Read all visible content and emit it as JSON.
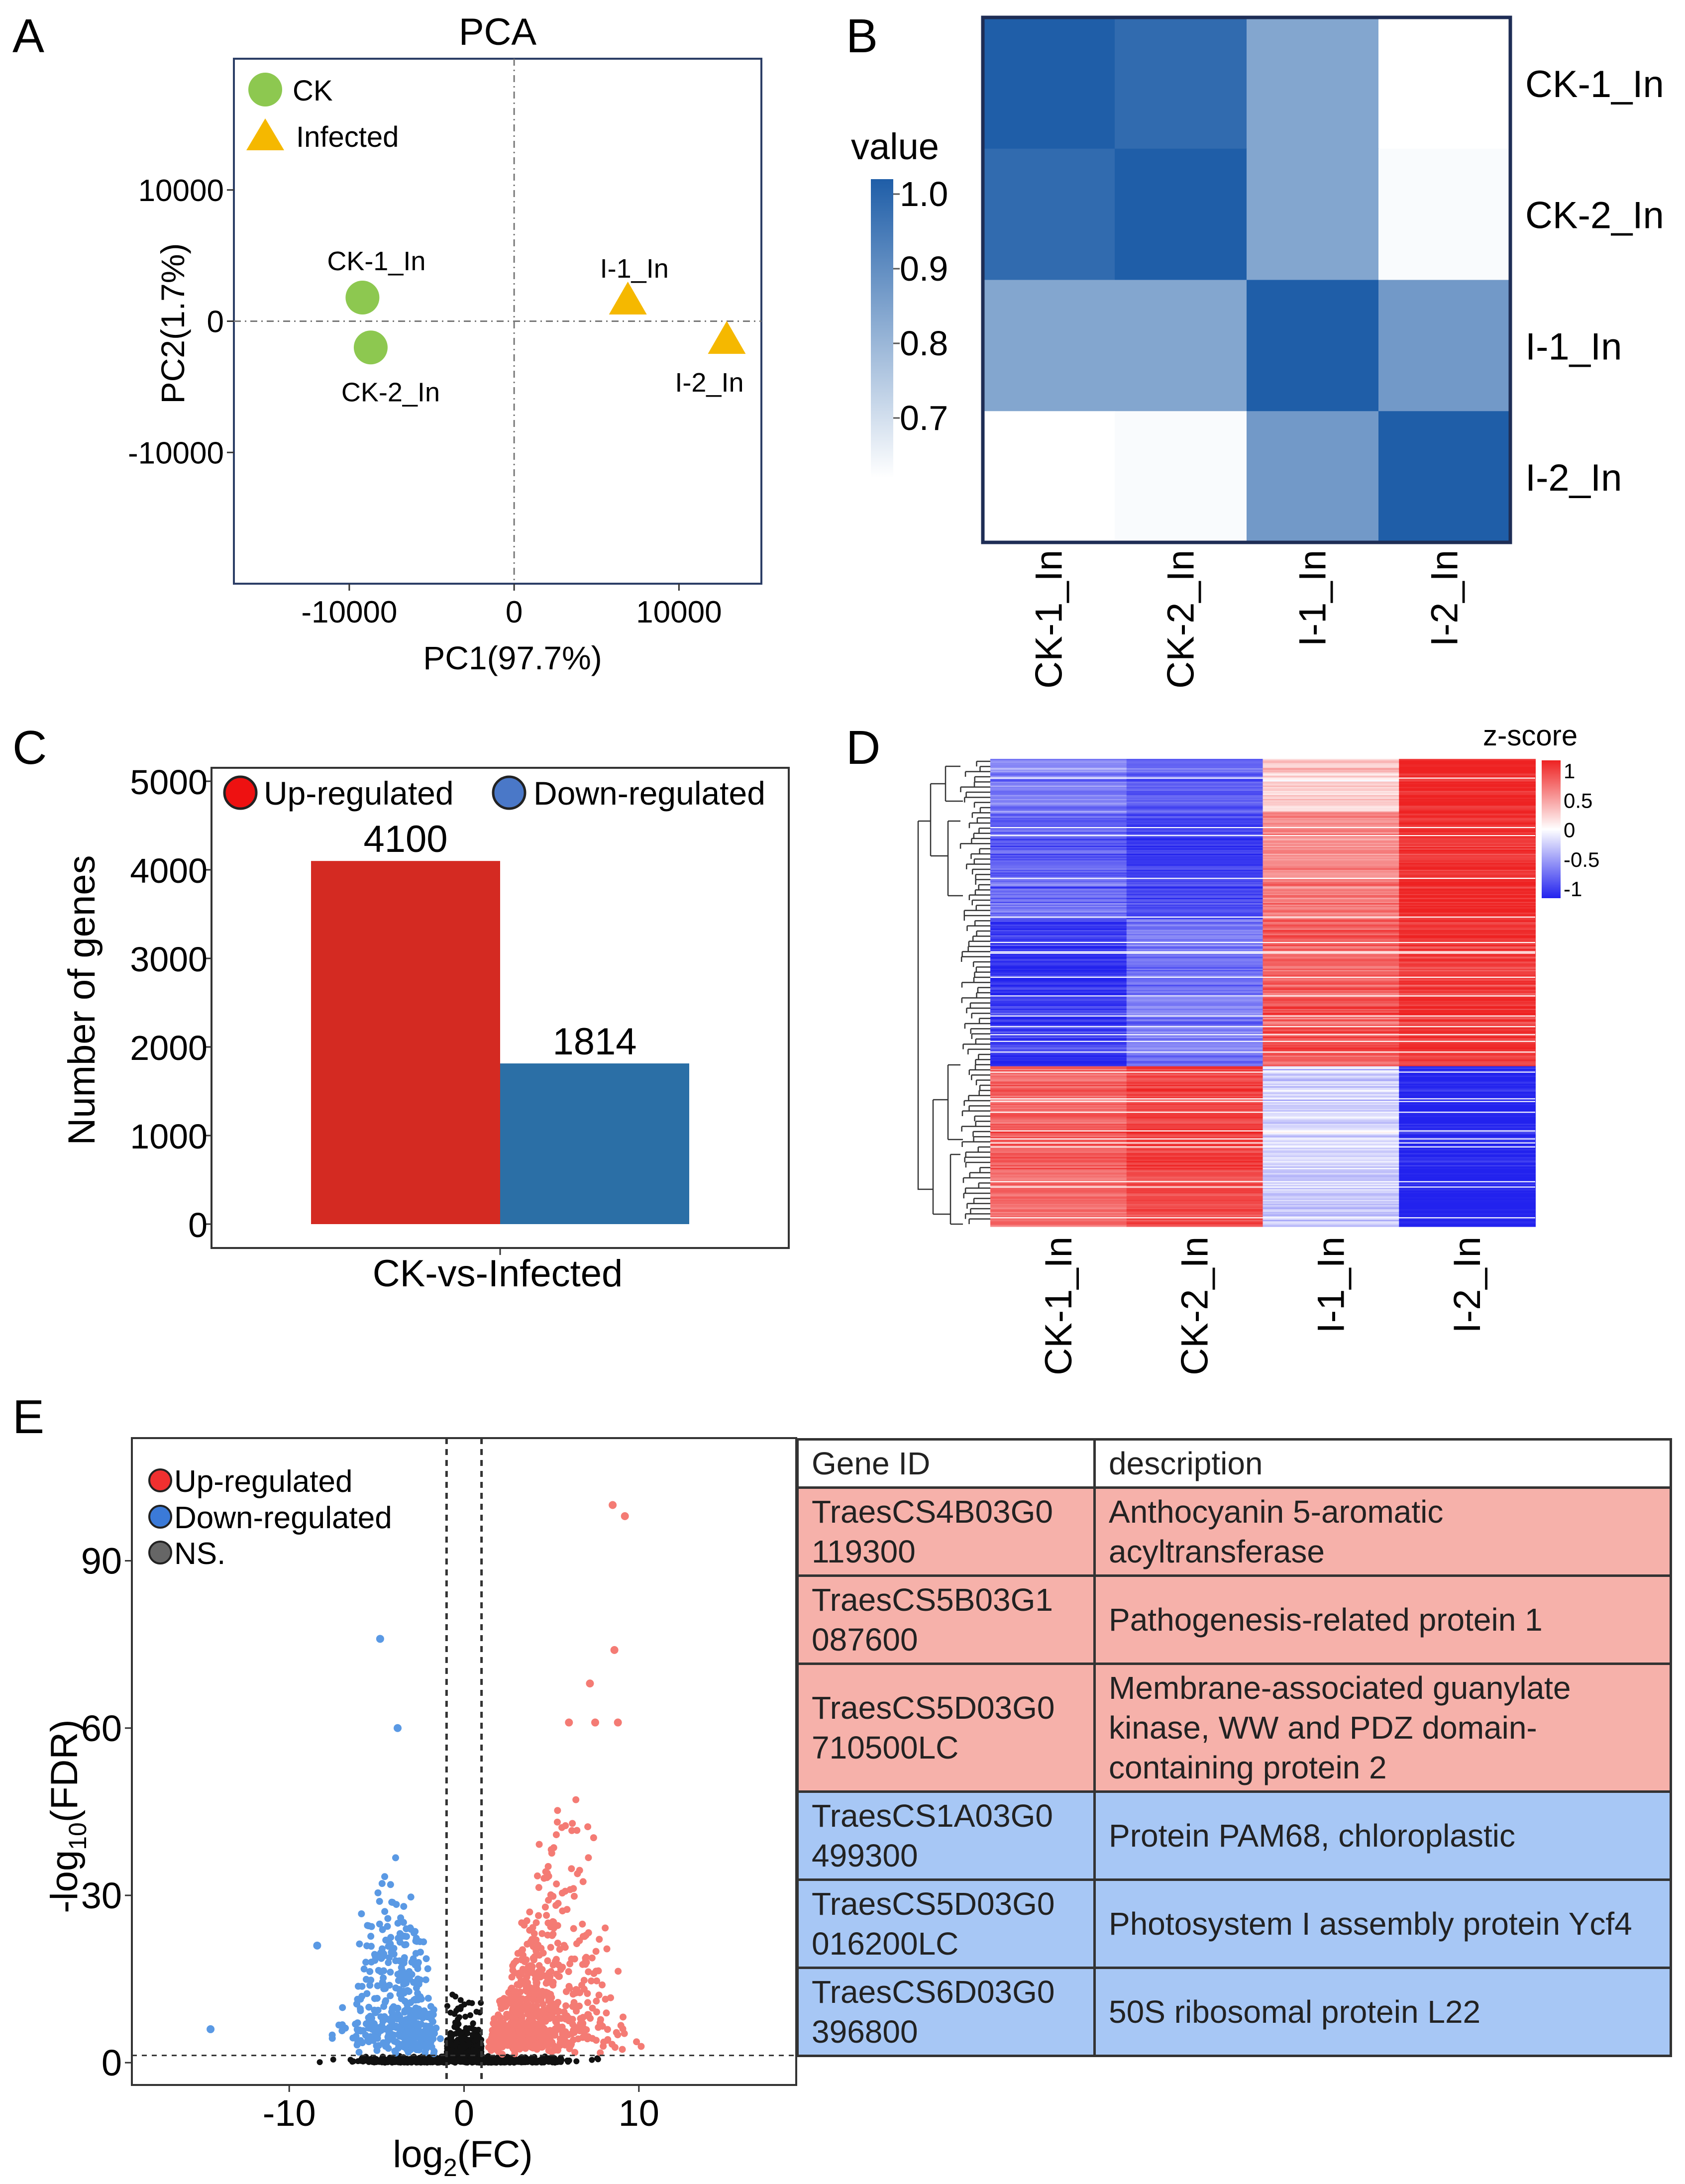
{
  "panels": {
    "a": "A",
    "b": "B",
    "c": "C",
    "d": "D",
    "e": "E"
  },
  "colors": {
    "ck": "#8dc850",
    "infected": "#f5b800",
    "up_bar": "#d42a22",
    "down_bar": "#2b6fa6",
    "up_dot": "#f47b74",
    "down_dot": "#5a99e4",
    "ns_dot": "#111111",
    "heat_high": "#1f5ea8",
    "heat_low": "#ffffff",
    "z_pos": "#ee2222",
    "z_neg": "#2222ee",
    "table_up": "#f6b1aa",
    "table_down": "#a7c7f5"
  },
  "chart_data": [
    {
      "id": "pca",
      "type": "scatter",
      "title": "PCA",
      "xlabel": "PC1(97.7%)",
      "ylabel": "PC2(1.7%)",
      "xlim": [
        -17000,
        15000
      ],
      "ylim": [
        -20000,
        20000
      ],
      "xticks": [
        "-10000",
        "0",
        "10000"
      ],
      "yticks": [
        "10000",
        "0",
        "-10000"
      ],
      "legend": [
        "CK",
        "Infected"
      ],
      "points": [
        {
          "label": "CK-1_In",
          "group": "CK",
          "x": -9200,
          "y": 1800
        },
        {
          "label": "CK-2_In",
          "group": "CK",
          "x": -8700,
          "y": -2000
        },
        {
          "label": "I-1_In",
          "group": "Infected",
          "x": 6900,
          "y": 1500
        },
        {
          "label": "I-2_In",
          "group": "Infected",
          "x": 12900,
          "y": -1500
        }
      ]
    },
    {
      "id": "correlation",
      "type": "heatmap",
      "rows": [
        "CK-1_In",
        "CK-2_In",
        "I-1_In",
        "I-2_In"
      ],
      "cols": [
        "CK-1_In",
        "CK-2_In",
        "I-1_In",
        "I-2_In"
      ],
      "legend_title": "value",
      "legend_ticks": [
        "1.0",
        "0.9",
        "0.8",
        "0.7"
      ],
      "range": [
        0.62,
        1.0
      ],
      "values": [
        [
          1.0,
          0.97,
          0.83,
          0.62
        ],
        [
          0.97,
          1.0,
          0.83,
          0.63
        ],
        [
          0.83,
          0.83,
          1.0,
          0.86
        ],
        [
          0.62,
          0.63,
          0.86,
          1.0
        ]
      ]
    },
    {
      "id": "deg_bars",
      "type": "bar",
      "categories": [
        "CK-vs-Infected"
      ],
      "series": [
        {
          "name": "Up-regulated",
          "values": [
            4100
          ]
        },
        {
          "name": "Down-regulated",
          "values": [
            1814
          ]
        }
      ],
      "data_labels": [
        "4100",
        "1814"
      ],
      "ylabel": "Number of genes",
      "xlabel": "CK-vs-Infected",
      "ylim": [
        0,
        5000
      ],
      "yticks": [
        "5000",
        "4000",
        "3000",
        "2000",
        "1000",
        "0"
      ]
    },
    {
      "id": "zscore_heatmap",
      "type": "heatmap",
      "cols": [
        "CK-1_In",
        "CK-2_In",
        "I-1_In",
        "I-2_In"
      ],
      "legend_title": "z-score",
      "legend_ticks": [
        "1",
        "0.5",
        "0",
        "-0.5",
        "-1"
      ],
      "range": [
        -1,
        1
      ],
      "blocks": [
        {
          "rows": 40,
          "values": [
            -0.55,
            -0.7,
            0.25,
            1.0
          ]
        },
        {
          "rows": 80,
          "values": [
            -0.7,
            -0.85,
            0.55,
            0.95
          ]
        },
        {
          "rows": 110,
          "values": [
            -0.9,
            -0.6,
            0.75,
            0.9
          ]
        },
        {
          "rows": 120,
          "values": [
            0.7,
            0.85,
            -0.2,
            -1.0
          ]
        }
      ]
    },
    {
      "id": "volcano",
      "type": "scatter",
      "xlabel": "log2(FC)",
      "ylabel": "-log10(FDR)",
      "xlim": [
        -19,
        19
      ],
      "ylim": [
        -4,
        112
      ],
      "xticks": [
        "-10",
        "0",
        "10"
      ],
      "yticks": [
        "90",
        "60",
        "30",
        "0"
      ],
      "thresholds": {
        "log2fc": [
          -1,
          1
        ],
        "fdr": 1.3
      },
      "legend": [
        "Up-regulated",
        "Down-regulated",
        "NS."
      ],
      "highlights": [
        {
          "group": "up",
          "x": 8.5,
          "y": 100
        },
        {
          "group": "up",
          "x": 9.2,
          "y": 98
        },
        {
          "group": "up",
          "x": 8.6,
          "y": 74
        },
        {
          "group": "up",
          "x": 7.2,
          "y": 68
        },
        {
          "group": "up",
          "x": 6,
          "y": 61
        },
        {
          "group": "up",
          "x": 7.5,
          "y": 61
        },
        {
          "group": "up",
          "x": 8.8,
          "y": 61
        },
        {
          "group": "down",
          "x": -4.8,
          "y": 76
        },
        {
          "group": "down",
          "x": -3.8,
          "y": 60
        },
        {
          "group": "down",
          "x": -8.4,
          "y": 21
        },
        {
          "group": "down",
          "x": -14.5,
          "y": 6
        }
      ]
    }
  ],
  "table": {
    "headers": [
      "Gene ID",
      "description"
    ],
    "rows": [
      {
        "group": "up",
        "id_line1": "TraesCS4B03G0",
        "id_line2": "119300",
        "desc": "Anthocyanin 5-aromatic acyltransferase"
      },
      {
        "group": "up",
        "id_line1": "TraesCS5B03G1",
        "id_line2": "087600",
        "desc": "Pathogenesis-related protein 1"
      },
      {
        "group": "up",
        "id_line1": "TraesCS5D03G0",
        "id_line2": "710500LC",
        "desc": "Membrane-associated guanylate kinase, WW and PDZ domain-containing protein 2"
      },
      {
        "group": "down",
        "id_line1": "TraesCS1A03G0",
        "id_line2": "499300",
        "desc": "Protein PAM68, chloroplastic"
      },
      {
        "group": "down",
        "id_line1": "TraesCS5D03G0",
        "id_line2": "016200LC",
        "desc": "Photosystem I assembly protein Ycf4"
      },
      {
        "group": "down",
        "id_line1": "TraesCS6D03G0",
        "id_line2": "396800",
        "desc": "50S ribosomal protein L22"
      }
    ]
  },
  "volcano_ylabel_parts": {
    "pre": "-log",
    "sub": "10",
    "post": "(FDR)"
  },
  "volcano_xlabel_parts": {
    "pre": "log",
    "sub": "2",
    "post": "(FC)"
  }
}
